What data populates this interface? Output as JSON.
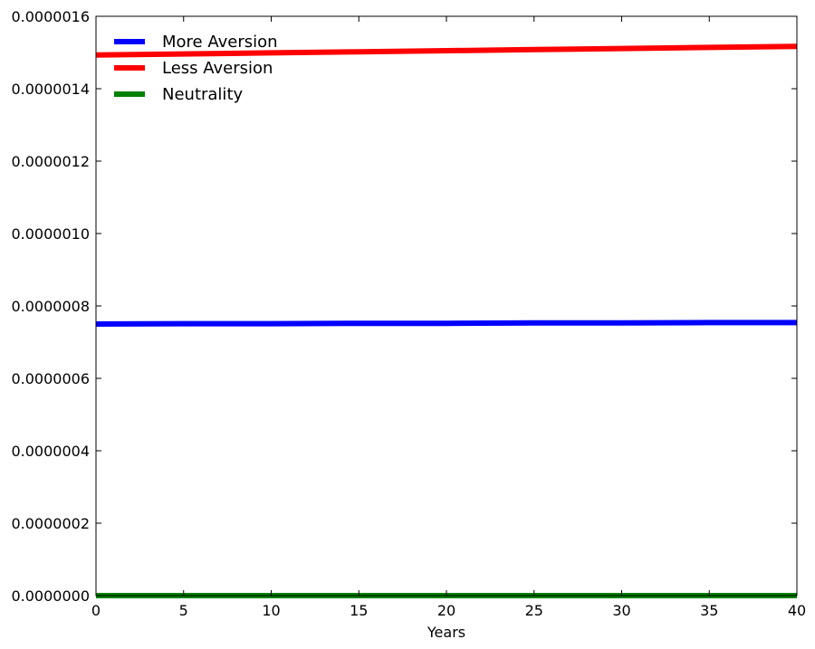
{
  "chart_data": {
    "type": "line",
    "title": "",
    "xlabel": "Years",
    "ylabel": "",
    "xlim": [
      0,
      40
    ],
    "ylim": [
      0,
      1.6e-06
    ],
    "xticks": [
      0,
      5,
      10,
      15,
      20,
      25,
      30,
      35,
      40
    ],
    "xtick_labels": [
      "0",
      "5",
      "10",
      "15",
      "20",
      "25",
      "30",
      "35",
      "40"
    ],
    "yticks": [
      0,
      2e-07,
      4e-07,
      6e-07,
      8e-07,
      1e-06,
      1.2e-06,
      1.4e-06,
      1.6e-06
    ],
    "ytick_labels": [
      "0.0000000",
      "0.0000002",
      "0.0000004",
      "0.0000006",
      "0.0000008",
      "0.0000010",
      "0.0000012",
      "0.0000014",
      "0.0000016"
    ],
    "grid": false,
    "legend_position": "top-left",
    "x": [
      0,
      5,
      10,
      15,
      20,
      25,
      30,
      35,
      40
    ],
    "series": [
      {
        "name": "More Aversion",
        "color": "#0000ff",
        "values": [
          7.5e-07,
          7.51e-07,
          7.51e-07,
          7.52e-07,
          7.52e-07,
          7.53e-07,
          7.53e-07,
          7.54e-07,
          7.54e-07
        ]
      },
      {
        "name": "Less Aversion",
        "color": "#ff0000",
        "values": [
          1.493e-06,
          1.496e-06,
          1.499e-06,
          1.502e-06,
          1.505e-06,
          1.508e-06,
          1.511e-06,
          1.514e-06,
          1.517e-06
        ]
      },
      {
        "name": "Neutrality",
        "color": "#008000",
        "values": [
          0,
          0,
          0,
          0,
          0,
          0,
          0,
          0,
          0
        ]
      }
    ]
  }
}
